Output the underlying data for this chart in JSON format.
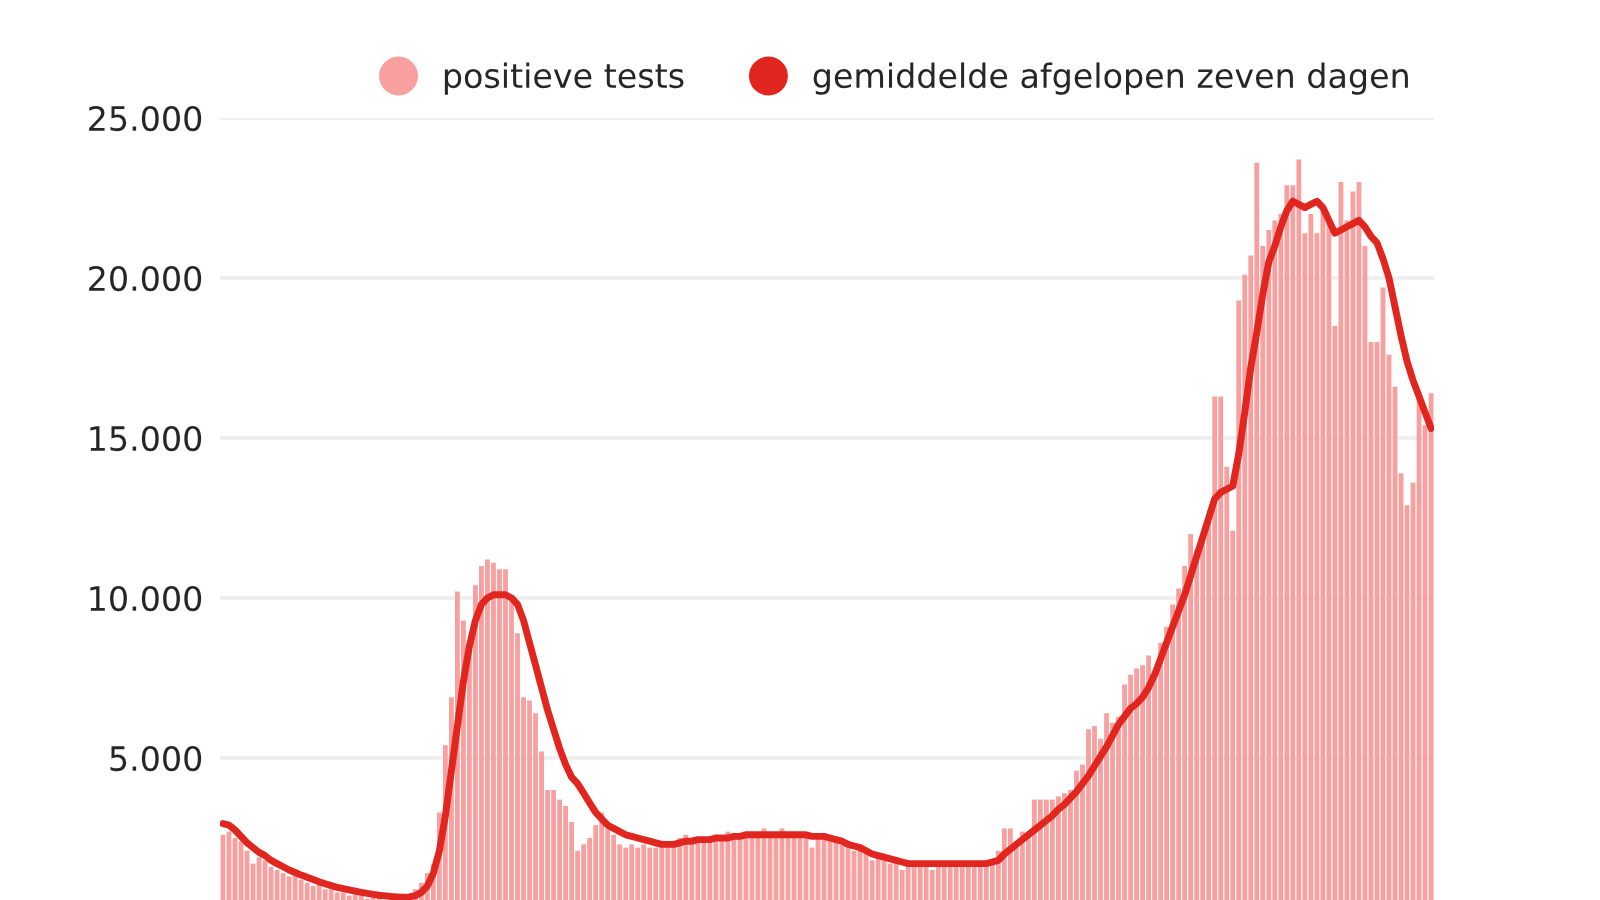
{
  "chart_data": {
    "type": "bar",
    "categories": [
      null,
      null,
      null,
      null,
      null,
      null,
      null,
      null,
      null,
      null,
      null,
      null,
      null,
      null,
      null,
      null,
      null,
      null,
      null,
      null,
      null,
      null,
      null,
      null,
      null,
      null,
      null,
      null,
      null,
      null,
      null,
      null,
      null,
      null,
      null,
      null,
      null,
      null,
      null,
      null,
      null,
      null,
      null,
      null,
      null,
      null,
      null,
      null,
      null,
      null,
      null,
      null,
      null,
      null,
      null,
      null,
      null,
      null,
      null,
      null,
      null,
      null,
      null,
      null,
      null,
      null,
      null,
      null,
      null,
      null,
      null,
      null,
      null,
      null,
      null,
      null,
      null,
      null,
      null,
      null,
      null,
      null,
      null,
      null,
      null,
      null,
      null,
      null,
      null,
      null,
      null,
      null,
      null,
      null,
      null,
      null,
      null,
      null,
      null,
      null,
      null,
      null,
      null,
      null,
      null,
      null,
      null,
      null,
      null,
      null,
      null,
      null,
      null,
      null,
      null,
      null,
      null,
      null,
      null,
      null,
      null,
      null,
      null,
      null,
      null,
      null,
      null,
      null,
      null,
      null,
      null,
      null,
      null,
      null,
      null,
      null,
      null,
      null,
      null,
      null,
      null,
      null,
      null,
      null,
      null,
      null,
      null,
      null,
      null,
      null,
      null,
      null,
      null,
      null,
      null,
      null,
      null,
      null,
      null,
      null,
      null,
      null,
      null,
      null,
      null,
      null,
      null,
      null,
      null,
      null,
      null,
      null,
      null,
      null,
      null,
      null,
      null,
      null,
      null,
      null,
      null,
      null,
      null,
      null,
      null,
      null,
      null,
      null,
      null,
      null,
      null,
      null,
      null,
      null,
      null,
      null,
      null,
      null,
      null,
      null,
      null,
      null
    ],
    "series": [
      {
        "name": "positieve tests",
        "color": "#f8a0a0",
        "values": [
          2600,
          2700,
          2500,
          2400,
          2100,
          1700,
          1900,
          1800,
          1600,
          1500,
          1400,
          1300,
          1500,
          1200,
          1100,
          1000,
          1100,
          900,
          900,
          800,
          800,
          700,
          800,
          700,
          600,
          700,
          650,
          null,
          null,
          null,
          null,
          null,
          900,
          1100,
          1400,
          1700,
          3300,
          5400,
          6900,
          10200,
          9300,
          8500,
          10400,
          11000,
          11200,
          11100,
          10900,
          10900,
          9900,
          8900,
          6900,
          6800,
          6400,
          5200,
          4000,
          4000,
          3700,
          3500,
          3000,
          2100,
          2300,
          2500,
          2900,
          3300,
          2800,
          2600,
          2300,
          2200,
          2300,
          2200,
          2300,
          2200,
          2200,
          2400,
          2300,
          2400,
          2500,
          2600,
          2400,
          2500,
          2500,
          2400,
          2600,
          2500,
          2700,
          2500,
          2600,
          2700,
          2600,
          2500,
          2800,
          2600,
          2500,
          2800,
          2600,
          2500,
          2600,
          2500,
          2200,
          2600,
          2600,
          2600,
          2400,
          2300,
          2200,
          2100,
          2300,
          2100,
          1800,
          2000,
          1900,
          1700,
          1800,
          1500,
          1800,
          1700,
          1600,
          1700,
          1500,
          1700,
          1700,
          1600,
          1700,
          1600,
          1700,
          1700,
          1600,
          1700,
          1700,
          2100,
          2800,
          2800,
          2400,
          2700,
          2600,
          3700,
          3700,
          3700,
          3700,
          3800,
          3900,
          4000,
          4600,
          4800,
          5900,
          6000,
          5600,
          6400,
          6100,
          6300,
          7300,
          7600,
          7800,
          7900,
          8200,
          7600,
          8600,
          9100,
          9800,
          10300,
          11000,
          12000,
          11500,
          11800,
          12600,
          16300,
          16300,
          14100,
          12100,
          19300,
          20100,
          20700,
          23600,
          21000,
          21500,
          21800,
          22000,
          22900,
          22900,
          23700,
          21400,
          22000,
          21400,
          22100,
          21800,
          18500,
          23000,
          21800,
          22700,
          23000,
          21000,
          18000,
          18000,
          19700,
          17600,
          16600,
          13900,
          12900,
          13600,
          16400,
          15400,
          16400
        ]
      },
      {
        "name": "gemiddelde afgelopen zeven dagen",
        "type": "line",
        "color": "#e0261e",
        "values": [
          2950,
          2900,
          2750,
          2550,
          2350,
          2200,
          2050,
          1950,
          1800,
          1700,
          1600,
          1500,
          1420,
          1340,
          1270,
          1200,
          1130,
          1070,
          1010,
          960,
          920,
          880,
          840,
          800,
          770,
          740,
          710,
          690,
          670,
          660,
          650,
          660,
          700,
          800,
          1000,
          1400,
          2100,
          3200,
          4600,
          6000,
          7400,
          8500,
          9300,
          9800,
          10000,
          10100,
          10100,
          10100,
          10000,
          9800,
          9300,
          8600,
          7900,
          7200,
          6500,
          5900,
          5300,
          4800,
          4400,
          4200,
          3900,
          3600,
          3300,
          3100,
          2900,
          2800,
          2700,
          2600,
          2550,
          2500,
          2450,
          2400,
          2350,
          2300,
          2300,
          2300,
          2350,
          2400,
          2400,
          2450,
          2450,
          2450,
          2500,
          2500,
          2500,
          2550,
          2550,
          2600,
          2600,
          2600,
          2600,
          2600,
          2600,
          2600,
          2600,
          2600,
          2600,
          2600,
          2550,
          2550,
          2550,
          2500,
          2450,
          2400,
          2300,
          2250,
          2200,
          2100,
          2000,
          1950,
          1900,
          1850,
          1800,
          1750,
          1700,
          1700,
          1700,
          1700,
          1700,
          1700,
          1700,
          1700,
          1700,
          1700,
          1700,
          1700,
          1700,
          1700,
          1750,
          1800,
          2000,
          2150,
          2300,
          2450,
          2600,
          2750,
          2900,
          3050,
          3200,
          3400,
          3550,
          3750,
          3950,
          4200,
          4450,
          4750,
          5050,
          5350,
          5700,
          6050,
          6300,
          6550,
          6700,
          6900,
          7200,
          7600,
          8100,
          8600,
          9100,
          9600,
          10100,
          10700,
          11300,
          11900,
          12500,
          13100,
          13300,
          13400,
          13500,
          14500,
          15800,
          17200,
          18300,
          19500,
          20500,
          21000,
          21600,
          22100,
          22400,
          22300,
          22200,
          22300,
          22400,
          22200,
          21800,
          21400,
          21500,
          21600,
          21700,
          21800,
          21600,
          21300,
          21100,
          20600,
          20000,
          19100,
          18200,
          17400,
          16800,
          16300,
          15800,
          15300
        ]
      }
    ],
    "ylim": [
      0,
      25000
    ],
    "yticks": [
      {
        "value": 5000,
        "label": "5.000"
      },
      {
        "value": 10000,
        "label": "10.000"
      },
      {
        "value": 15000,
        "label": "15.000"
      },
      {
        "value": 20000,
        "label": "20.000"
      },
      {
        "value": 25000,
        "label": "25.000"
      }
    ],
    "tick_labels": "y",
    "grid": "y",
    "legend": "top right",
    "marker": "none"
  }
}
